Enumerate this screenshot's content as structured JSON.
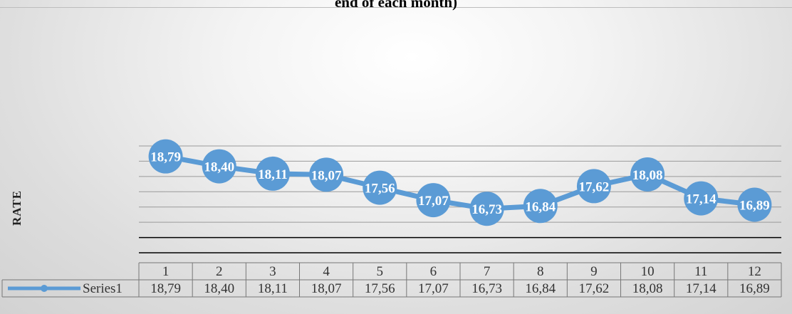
{
  "title": "end of each month)",
  "chart_data": {
    "type": "line",
    "title": "end of each month)",
    "ylabel": "RATE",
    "xlabel": "",
    "categories": [
      "1",
      "2",
      "3",
      "4",
      "5",
      "6",
      "7",
      "8",
      "9",
      "10",
      "11",
      "12"
    ],
    "series": [
      {
        "name": "Series1",
        "color": "#5b9bd5",
        "values": [
          18.79,
          18.4,
          18.11,
          18.07,
          17.56,
          17.07,
          16.73,
          16.84,
          17.62,
          18.08,
          17.14,
          16.89
        ]
      }
    ],
    "data_labels": [
      "18,79",
      "18,40",
      "18,11",
      "18,07",
      "17,56",
      "17,07",
      "16,73",
      "16,84",
      "17,62",
      "18,08",
      "17,14",
      "16,89"
    ],
    "ylim": [
      15.0,
      19.2
    ],
    "grid": true,
    "legend": "data-table-left",
    "data_table": true
  }
}
